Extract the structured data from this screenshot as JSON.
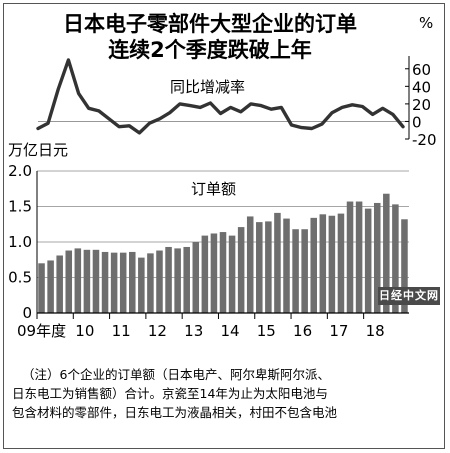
{
  "title": {
    "line1": "日本电子零部件大型企业的订单",
    "line2": "连续2个季度跌破上年"
  },
  "notes": {
    "line1": "（注）6个企业的订单额（日本电产、阿尔卑斯阿尔派、",
    "line2": "日东电工为销售额）合计。京瓷至14年为止为太阳电池与",
    "line3": "包含材料的零部件，日东电工为液晶相关，村田不包含电池"
  },
  "watermark": "日经中文网",
  "colors": {
    "bar": "#6e6e6e",
    "line": "#333333",
    "grid": "#8a8a8a",
    "frame": "#555555"
  },
  "chart_data": [
    {
      "type": "line",
      "title": "同比增减率",
      "unit": "%",
      "ylim": [
        -20,
        70
      ],
      "yticks": [
        60,
        40,
        20,
        0,
        -20
      ],
      "ytick_labels": [
        "60",
        "40",
        "20",
        "0",
        "-20"
      ],
      "axis_side": "right",
      "series": [
        {
          "values": [
            -8,
            -2,
            37,
            70,
            32,
            15,
            12,
            3,
            -6,
            -5,
            -13,
            -2,
            3,
            10,
            20,
            18,
            16,
            21,
            9,
            16,
            11,
            20,
            18,
            14,
            16,
            -4,
            -7,
            -8,
            -3,
            10,
            16,
            19,
            17,
            8,
            15,
            8,
            -6
          ]
        }
      ]
    },
    {
      "type": "bar",
      "title": "订单额",
      "unit": "万亿日元",
      "ylim": [
        0,
        2.0
      ],
      "yticks": [
        0,
        0.5,
        1.0,
        1.5,
        2.0
      ],
      "ytick_labels": [
        "0",
        "0.5",
        "1.0",
        "1.5",
        "2.0"
      ],
      "x_labels": [
        {
          "index": 0,
          "text": "09年度"
        },
        {
          "index": 4,
          "text": "10"
        },
        {
          "index": 8,
          "text": "11"
        },
        {
          "index": 12,
          "text": "12"
        },
        {
          "index": 16,
          "text": "13"
        },
        {
          "index": 20,
          "text": "14"
        },
        {
          "index": 24,
          "text": "15"
        },
        {
          "index": 28,
          "text": "16"
        },
        {
          "index": 32,
          "text": "17"
        },
        {
          "index": 36,
          "text": "18"
        }
      ],
      "series": [
        {
          "values": [
            0.7,
            0.74,
            0.81,
            0.88,
            0.91,
            0.89,
            0.89,
            0.86,
            0.85,
            0.85,
            0.86,
            0.78,
            0.84,
            0.88,
            0.93,
            0.91,
            0.93,
            1.0,
            1.09,
            1.12,
            1.14,
            1.09,
            1.21,
            1.36,
            1.28,
            1.29,
            1.41,
            1.33,
            1.18,
            1.18,
            1.34,
            1.39,
            1.37,
            1.4,
            1.57,
            1.57,
            1.47,
            1.55,
            1.68,
            1.53,
            1.32
          ]
        }
      ]
    }
  ]
}
